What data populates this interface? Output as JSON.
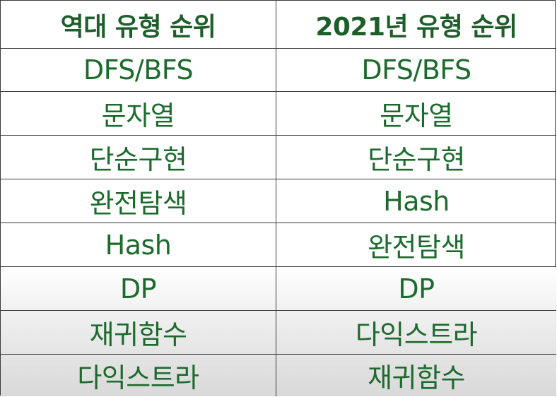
{
  "table": {
    "headers": [
      "역대 유형 순위",
      "2021년 유형 순위"
    ],
    "rows": [
      [
        "DFS/BFS",
        "DFS/BFS"
      ],
      [
        "문자열",
        "문자열"
      ],
      [
        "단순구현",
        "단순구현"
      ],
      [
        "완전탐색",
        "Hash"
      ],
      [
        "Hash",
        "완전탐색"
      ],
      [
        "DP",
        "DP"
      ],
      [
        "재귀함수",
        "다익스트라"
      ],
      [
        "다익스트라",
        "재귀함수"
      ]
    ]
  },
  "colors": {
    "text": "#1e6a2e",
    "border": "#3a3a3a",
    "background": "#ffffff"
  }
}
